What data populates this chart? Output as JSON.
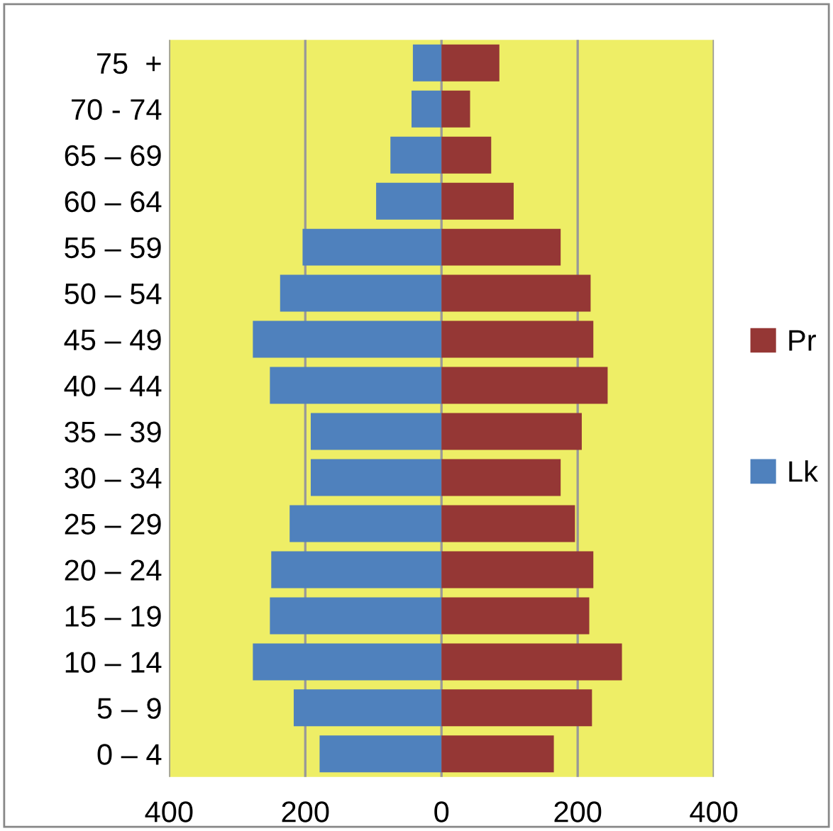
{
  "chart_data": {
    "type": "bar",
    "orientation": "horizontal",
    "stacked": true,
    "categories": [
      "75  +",
      "70 - 74",
      "65 – 69",
      "60 – 64",
      "55 – 59",
      "50 – 54",
      "45 – 49",
      "40 – 44",
      "35 – 39",
      "30 – 34",
      "25 – 29",
      "20 – 24",
      "15 – 19",
      "10 – 14",
      "5 – 9",
      "0 – 4"
    ],
    "series": [
      {
        "name": "Lk",
        "color": "#4f81bd",
        "values": [
          -42,
          -44,
          -75,
          -96,
          -204,
          -237,
          -277,
          -252,
          -192,
          -192,
          -223,
          -250,
          -252,
          -277,
          -217,
          -179
        ]
      },
      {
        "name": "Pr",
        "color": "#953735",
        "values": [
          85,
          42,
          73,
          106,
          175,
          219,
          223,
          244,
          206,
          175,
          196,
          223,
          217,
          265,
          221,
          165
        ]
      }
    ],
    "xlim": [
      -400,
      400
    ],
    "xticks": [
      {
        "value": -400,
        "label": "400"
      },
      {
        "value": -200,
        "label": "200"
      },
      0,
      200,
      400
    ],
    "grid": "x",
    "legend": "right"
  }
}
